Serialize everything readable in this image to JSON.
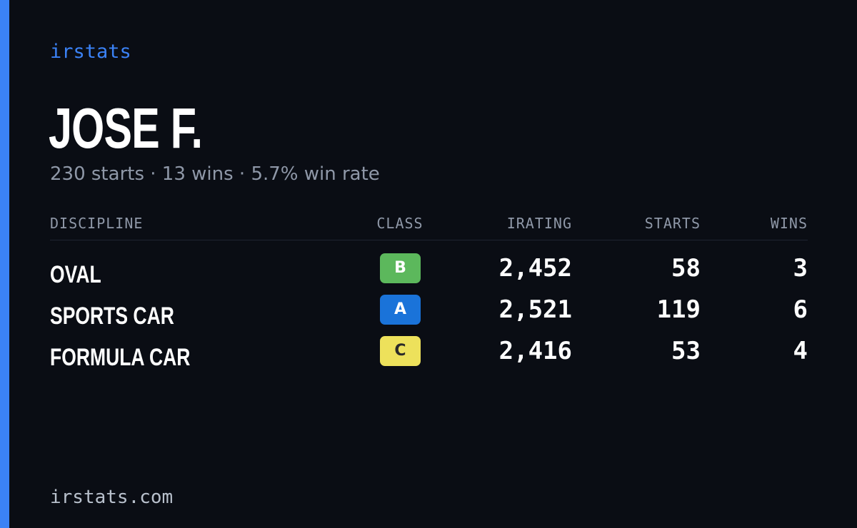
{
  "brand": "irstats",
  "driver": {
    "name": "JOSE F.",
    "summary": "230 starts · 13 wins · 5.7% win rate"
  },
  "table": {
    "headers": {
      "discipline": "DISCIPLINE",
      "class": "CLASS",
      "irating": "IRATING",
      "starts": "STARTS",
      "wins": "WINS"
    },
    "rows": [
      {
        "discipline": "OVAL",
        "class": "B",
        "class_color": "#5cb85c",
        "class_text_color": "#ffffff",
        "irating": "2,452",
        "starts": "58",
        "wins": "3"
      },
      {
        "discipline": "SPORTS CAR",
        "class": "A",
        "class_color": "#1a73d9",
        "class_text_color": "#ffffff",
        "irating": "2,521",
        "starts": "119",
        "wins": "6"
      },
      {
        "discipline": "FORMULA CAR",
        "class": "C",
        "class_color": "#ede15b",
        "class_text_color": "#2a2a2a",
        "irating": "2,416",
        "starts": "53",
        "wins": "4"
      }
    ]
  },
  "footer": "irstats.com",
  "colors": {
    "background": "#0a0d14",
    "accent": "#3b82f6",
    "muted_text": "#8f98a8"
  }
}
